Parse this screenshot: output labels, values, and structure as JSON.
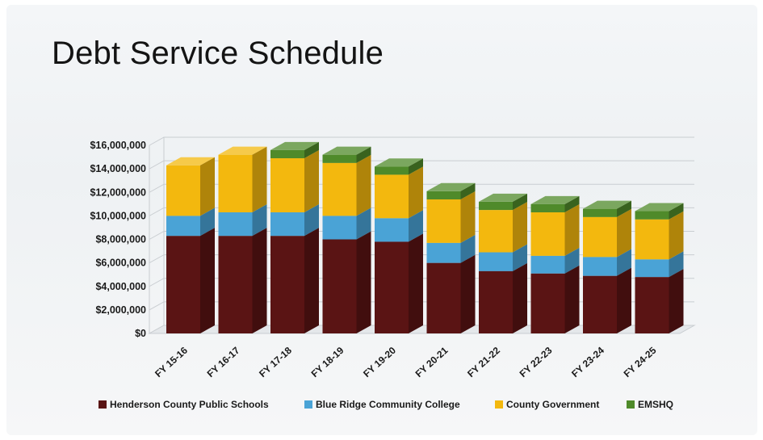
{
  "title": "Debt Service Schedule",
  "chart_data": {
    "type": "bar",
    "stacked": true,
    "style": "3d",
    "categories": [
      "FY 15-16",
      "FY 16-17",
      "FY 17-18",
      "FY 18-19",
      "FY 19-20",
      "FY 20-21",
      "FY 21-22",
      "FY 22-23",
      "FY 23-24",
      "FY 24-25"
    ],
    "series": [
      {
        "name": "Henderson County Public Schools",
        "color": "#5a1414",
        "values": [
          8300000,
          8300000,
          8300000,
          8000000,
          7800000,
          6000000,
          5300000,
          5100000,
          4900000,
          4800000
        ]
      },
      {
        "name": "Blue Ridge Community College",
        "color": "#4aa3d6",
        "values": [
          1700000,
          2000000,
          2000000,
          2000000,
          2000000,
          1700000,
          1600000,
          1500000,
          1600000,
          1500000
        ]
      },
      {
        "name": "County Government",
        "color": "#f3b80e",
        "values": [
          4300000,
          4900000,
          4600000,
          4500000,
          3700000,
          3700000,
          3600000,
          3700000,
          3400000,
          3400000
        ]
      },
      {
        "name": "EMSHQ",
        "color": "#4f8a2a",
        "values": [
          0,
          0,
          700000,
          700000,
          700000,
          700000,
          700000,
          700000,
          700000,
          700000
        ]
      }
    ],
    "yticks": [
      "$0",
      "$2,000,000",
      "$4,000,000",
      "$6,000,000",
      "$8,000,000",
      "$10,000,000",
      "$12,000,000",
      "$14,000,000",
      "$16,000,000"
    ],
    "ylim": [
      0,
      16000000
    ],
    "grid": true,
    "legend": "bottom"
  }
}
